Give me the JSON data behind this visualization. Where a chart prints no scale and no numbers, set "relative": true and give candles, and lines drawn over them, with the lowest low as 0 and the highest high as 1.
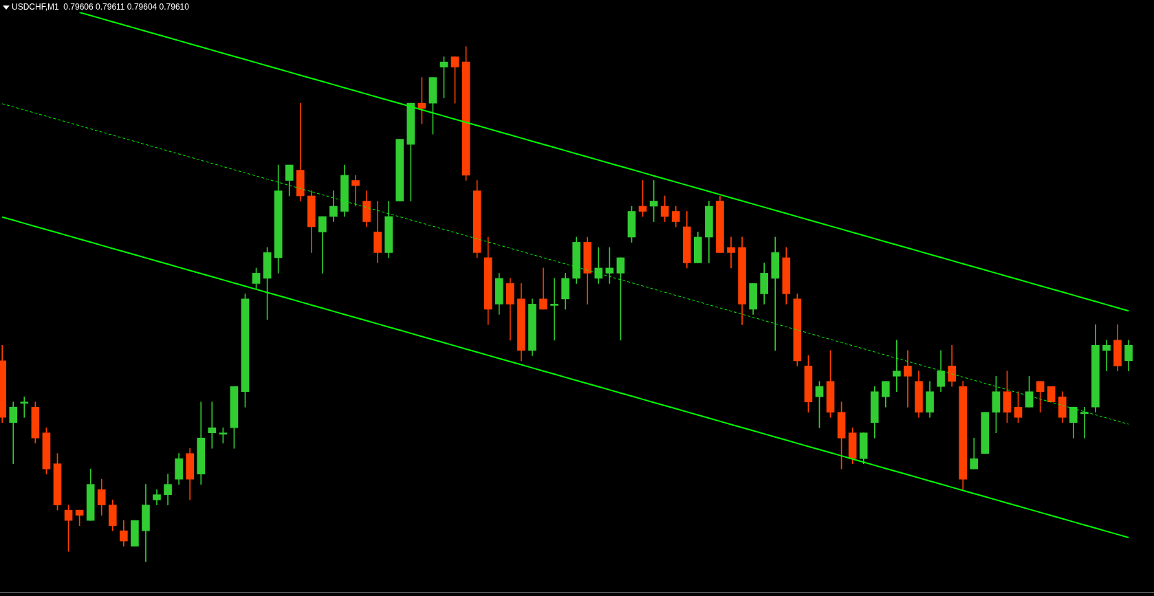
{
  "chart_data": {
    "type": "candlestick",
    "title": "USDCHF,M1  0.79606 0.79611 0.79604 0.79610",
    "relative": true,
    "legend": false,
    "marker": "none",
    "categories": [
      null,
      null,
      null,
      null,
      null,
      null,
      null,
      null,
      null,
      null,
      null,
      null,
      null,
      null,
      null,
      null,
      null,
      null,
      null,
      null,
      null,
      null,
      null,
      null,
      null,
      null,
      null,
      null,
      null,
      null,
      null,
      null,
      null,
      null,
      null,
      null,
      null,
      null,
      null,
      null,
      null,
      null,
      null,
      null,
      null,
      null,
      null,
      null,
      null,
      null,
      null,
      null,
      null,
      null,
      null,
      null,
      null,
      null,
      null,
      null,
      null,
      null,
      null,
      null,
      null,
      null,
      null,
      null,
      null,
      null,
      null,
      null,
      null,
      null,
      null,
      null,
      null,
      null,
      null,
      null,
      null,
      null,
      null,
      null,
      null,
      null,
      null,
      null,
      null,
      null,
      null,
      null,
      null,
      null,
      null,
      null,
      null,
      null,
      null,
      null,
      null,
      null,
      null
    ],
    "ohlc": [
      [
        0.39,
        0.42,
        0.27,
        0.28
      ],
      [
        0.27,
        0.31,
        0.19,
        0.3
      ],
      [
        0.31,
        0.32,
        0.28,
        0.31
      ],
      [
        0.3,
        0.31,
        0.23,
        0.24
      ],
      [
        0.25,
        0.26,
        0.17,
        0.18
      ],
      [
        0.19,
        0.21,
        0.1,
        0.11
      ],
      [
        0.1,
        0.11,
        0.02,
        0.08
      ],
      [
        0.1,
        0.1,
        0.07,
        0.09
      ],
      [
        0.08,
        0.18,
        0.08,
        0.15
      ],
      [
        0.14,
        0.16,
        0.09,
        0.11
      ],
      [
        0.11,
        0.12,
        0.06,
        0.07
      ],
      [
        0.06,
        0.08,
        0.03,
        0.04
      ],
      [
        0.03,
        0.08,
        0.03,
        0.08
      ],
      [
        0.06,
        0.15,
        0,
        0.11
      ],
      [
        0.12,
        0.14,
        0.11,
        0.13
      ],
      [
        0.13,
        0.17,
        0.11,
        0.15
      ],
      [
        0.16,
        0.21,
        0.15,
        0.2
      ],
      [
        0.21,
        0.22,
        0.12,
        0.16
      ],
      [
        0.17,
        0.31,
        0.15,
        0.24
      ],
      [
        0.25,
        0.31,
        0.22,
        0.26
      ],
      [
        0.25,
        0.26,
        0.23,
        0.25
      ],
      [
        0.26,
        0.34,
        0.22,
        0.34
      ],
      [
        0.33,
        0.52,
        0.3,
        0.51
      ],
      [
        0.54,
        0.57,
        0.53,
        0.56
      ],
      [
        0.55,
        0.61,
        0.47,
        0.6
      ],
      [
        0.59,
        0.77,
        0.56,
        0.72
      ],
      [
        0.74,
        0.77,
        0.71,
        0.77
      ],
      [
        0.76,
        0.89,
        0.7,
        0.71
      ],
      [
        0.71,
        0.72,
        0.6,
        0.65
      ],
      [
        0.64,
        0.67,
        0.56,
        0.67
      ],
      [
        0.67,
        0.72,
        0.66,
        0.69
      ],
      [
        0.68,
        0.77,
        0.67,
        0.75
      ],
      [
        0.74,
        0.75,
        0.69,
        0.73
      ],
      [
        0.7,
        0.72,
        0.65,
        0.66
      ],
      [
        0.64,
        0.7,
        0.58,
        0.6
      ],
      [
        0.6,
        0.7,
        0.59,
        0.67
      ],
      [
        0.7,
        0.82,
        0.7,
        0.82
      ],
      [
        0.81,
        0.89,
        0.7,
        0.89
      ],
      [
        0.89,
        0.94,
        0.85,
        0.88
      ],
      [
        0.89,
        0.94,
        0.83,
        0.94
      ],
      [
        0.96,
        0.98,
        0.9,
        0.97
      ],
      [
        0.98,
        0.98,
        0.89,
        0.96
      ],
      [
        0.97,
        1,
        0.74,
        0.75
      ],
      [
        0.72,
        0.74,
        0.59,
        0.6
      ],
      [
        0.59,
        0.63,
        0.46,
        0.49
      ],
      [
        0.5,
        0.56,
        0.48,
        0.55
      ],
      [
        0.54,
        0.55,
        0.43,
        0.5
      ],
      [
        0.51,
        0.54,
        0.39,
        0.41
      ],
      [
        0.41,
        0.51,
        0.4,
        0.5
      ],
      [
        0.51,
        0.57,
        0.49,
        0.49
      ],
      [
        0.5,
        0.55,
        0.43,
        0.5
      ],
      [
        0.51,
        0.56,
        0.49,
        0.55
      ],
      [
        0.55,
        0.63,
        0.54,
        0.62
      ],
      [
        0.62,
        0.63,
        0.5,
        0.56
      ],
      [
        0.55,
        0.61,
        0.54,
        0.57
      ],
      [
        0.56,
        0.61,
        0.54,
        0.57
      ],
      [
        0.56,
        0.59,
        0.43,
        0.59
      ],
      [
        0.63,
        0.69,
        0.62,
        0.68
      ],
      [
        0.69,
        0.74,
        0.67,
        0.68
      ],
      [
        0.69,
        0.74,
        0.66,
        0.7
      ],
      [
        0.69,
        0.71,
        0.66,
        0.67
      ],
      [
        0.68,
        0.69,
        0.65,
        0.66
      ],
      [
        0.65,
        0.68,
        0.57,
        0.58
      ],
      [
        0.58,
        0.64,
        0.58,
        0.63
      ],
      [
        0.63,
        0.7,
        0.58,
        0.69
      ],
      [
        0.7,
        0.71,
        0.6,
        0.6
      ],
      [
        0.61,
        0.63,
        0.57,
        0.6
      ],
      [
        0.61,
        0.63,
        0.46,
        0.5
      ],
      [
        0.49,
        0.54,
        0.48,
        0.54
      ],
      [
        0.52,
        0.58,
        0.5,
        0.56
      ],
      [
        0.55,
        0.63,
        0.41,
        0.6
      ],
      [
        0.59,
        0.61,
        0.5,
        0.52
      ],
      [
        0.51,
        0.52,
        0.38,
        0.39
      ],
      [
        0.38,
        0.4,
        0.29,
        0.31
      ],
      [
        0.32,
        0.35,
        0.26,
        0.34
      ],
      [
        0.35,
        0.41,
        0.28,
        0.29
      ],
      [
        0.29,
        0.31,
        0.18,
        0.24
      ],
      [
        0.25,
        0.26,
        0.19,
        0.2
      ],
      [
        0.2,
        0.25,
        0.19,
        0.25
      ],
      [
        0.27,
        0.34,
        0.24,
        0.33
      ],
      [
        0.32,
        0.35,
        0.3,
        0.35
      ],
      [
        0.36,
        0.43,
        0.33,
        0.37
      ],
      [
        0.38,
        0.41,
        0.3,
        0.36
      ],
      [
        0.35,
        0.37,
        0.28,
        0.29
      ],
      [
        0.29,
        0.35,
        0.28,
        0.33
      ],
      [
        0.34,
        0.41,
        0.33,
        0.37
      ],
      [
        0.38,
        0.42,
        0.34,
        0.35
      ],
      [
        0.34,
        0.35,
        0.14,
        0.16
      ],
      [
        0.18,
        0.24,
        0.18,
        0.2
      ],
      [
        0.21,
        0.29,
        0.21,
        0.29
      ],
      [
        0.29,
        0.36,
        0.25,
        0.33
      ],
      [
        0.33,
        0.37,
        0.27,
        0.29
      ],
      [
        0.3,
        0.33,
        0.27,
        0.28
      ],
      [
        0.3,
        0.36,
        0.3,
        0.33
      ],
      [
        0.35,
        0.35,
        0.29,
        0.33
      ],
      [
        0.34,
        0.34,
        0.31,
        0.31
      ],
      [
        0.32,
        0.33,
        0.27,
        0.28
      ],
      [
        0.27,
        0.3,
        0.24,
        0.3
      ],
      [
        0.29,
        0.3,
        0.24,
        0.29
      ],
      [
        0.3,
        0.46,
        0.29,
        0.42
      ],
      [
        0.41,
        0.43,
        0.37,
        0.42
      ],
      [
        0.43,
        0.46,
        0.37,
        0.38
      ],
      [
        0.39,
        0.43,
        0.37,
        0.42
      ]
    ],
    "colors": [
      "#ff4000",
      "#32cd32",
      "#32cd32",
      "#ff4000",
      "#ff4000",
      "#ff4000",
      "#ff4000",
      "#ff4000",
      "#32cd32",
      "#ff4000",
      "#ff4000",
      "#ff4000",
      "#32cd32",
      "#32cd32",
      "#32cd32",
      "#32cd32",
      "#32cd32",
      "#ff4000",
      "#32cd32",
      "#32cd32",
      "#32cd32",
      "#32cd32",
      "#32cd32",
      "#32cd32",
      "#32cd32",
      "#32cd32",
      "#32cd32",
      "#ff4000",
      "#ff4000",
      "#32cd32",
      "#32cd32",
      "#32cd32",
      "#ff4000",
      "#ff4000",
      "#ff4000",
      "#32cd32",
      "#32cd32",
      "#32cd32",
      "#ff4000",
      "#32cd32",
      "#32cd32",
      "#ff4000",
      "#ff4000",
      "#ff4000",
      "#ff4000",
      "#32cd32",
      "#ff4000",
      "#ff4000",
      "#32cd32",
      "#ff4000",
      "#32cd32",
      "#32cd32",
      "#32cd32",
      "#ff4000",
      "#32cd32",
      "#32cd32",
      "#32cd32",
      "#32cd32",
      "#ff4000",
      "#32cd32",
      "#ff4000",
      "#ff4000",
      "#ff4000",
      "#32cd32",
      "#32cd32",
      "#ff4000",
      "#ff4000",
      "#ff4000",
      "#32cd32",
      "#32cd32",
      "#32cd32",
      "#ff4000",
      "#ff4000",
      "#ff4000",
      "#32cd32",
      "#ff4000",
      "#ff4000",
      "#ff4000",
      "#32cd32",
      "#32cd32",
      "#32cd32",
      "#32cd32",
      "#ff4000",
      "#ff4000",
      "#32cd32",
      "#32cd32",
      "#ff4000",
      "#ff4000",
      "#32cd32",
      "#32cd32",
      "#32cd32",
      "#ff4000",
      "#ff4000",
      "#32cd32",
      "#ff4000",
      "#ff4000",
      "#ff4000",
      "#32cd32",
      "#32cd32",
      "#32cd32",
      "#32cd32",
      "#ff4000",
      "#32cd32"
    ],
    "series": [
      {
        "type": "line",
        "color": "#00ff00",
        "line_style": "solid",
        "values": [
          null,
          null,
          null,
          null,
          null,
          null,
          null,
          1.0663,
          1.0602,
          1.0541,
          1.048,
          1.0419,
          1.0358,
          1.0297,
          1.0236,
          1.0175,
          1.0114,
          1.0053,
          0.9992,
          0.9931,
          0.987,
          0.9809,
          0.9748,
          0.9687,
          0.9626,
          0.9565,
          0.9504,
          0.9443,
          0.9382,
          0.9321,
          0.926,
          0.9199,
          0.9138,
          0.9077,
          0.9016,
          0.8955,
          0.8894,
          0.8833,
          0.8772,
          0.8711,
          0.865,
          0.8589,
          0.8528,
          0.8467,
          0.8406,
          0.8345,
          0.8284,
          0.8223,
          0.8162,
          0.8101,
          0.804,
          0.7979,
          0.7918,
          0.7857,
          0.7796,
          0.7735,
          0.7674,
          0.7613,
          0.7552,
          0.7491,
          0.743,
          0.7369,
          0.7308,
          0.7247,
          0.7186,
          0.7125,
          0.7064,
          0.7003,
          0.6942,
          0.6881,
          0.682,
          0.6759,
          0.6698,
          0.6637,
          0.6576,
          0.6515,
          0.6454,
          0.6393,
          0.6332,
          0.6271,
          0.621,
          0.6149,
          0.6088,
          0.6027,
          0.5966,
          0.5905,
          0.5844,
          0.5783,
          0.5722,
          0.5661,
          0.56,
          0.5539,
          0.5478,
          0.5417,
          0.5356,
          0.5295,
          0.5234,
          0.5173,
          0.5112,
          0.5051,
          0.499,
          0.4929,
          0.4868
        ]
      },
      {
        "type": "line",
        "color": "#00ff00",
        "line_style": "dashed",
        "values": [
          0.889,
          0.8829,
          0.8768,
          0.8707,
          0.8646,
          0.8585,
          0.8524,
          0.8463,
          0.8402,
          0.8341,
          0.828,
          0.8219,
          0.8158,
          0.8097,
          0.8036,
          0.7975,
          0.7914,
          0.7853,
          0.7792,
          0.7731,
          0.767,
          0.7609,
          0.7548,
          0.7487,
          0.7426,
          0.7365,
          0.7304,
          0.7243,
          0.7182,
          0.7121,
          0.706,
          0.6999,
          0.6938,
          0.6877,
          0.6816,
          0.6755,
          0.6694,
          0.6633,
          0.6572,
          0.6511,
          0.645,
          0.6389,
          0.6328,
          0.6267,
          0.6206,
          0.6145,
          0.6084,
          0.6023,
          0.5962,
          0.5901,
          0.584,
          0.5779,
          0.5718,
          0.5657,
          0.5596,
          0.5535,
          0.5474,
          0.5413,
          0.5352,
          0.5291,
          0.523,
          0.5169,
          0.5108,
          0.5047,
          0.4986,
          0.4925,
          0.4864,
          0.4803,
          0.4742,
          0.4681,
          0.462,
          0.4559,
          0.4498,
          0.4437,
          0.4376,
          0.4315,
          0.4254,
          0.4193,
          0.4132,
          0.4071,
          0.401,
          0.3949,
          0.3888,
          0.3827,
          0.3766,
          0.3705,
          0.3644,
          0.3583,
          0.3522,
          0.3461,
          0.34,
          0.3339,
          0.3278,
          0.3217,
          0.3156,
          0.3095,
          0.3034,
          0.2973,
          0.2912,
          0.2851,
          0.279,
          0.2729,
          0.2668
        ]
      },
      {
        "type": "line",
        "color": "#00ff00",
        "line_style": "solid",
        "values": [
          0.669,
          0.6629,
          0.6568,
          0.6507,
          0.6446,
          0.6385,
          0.6324,
          0.6263,
          0.6202,
          0.6141,
          0.608,
          0.6019,
          0.5958,
          0.5897,
          0.5836,
          0.5775,
          0.5714,
          0.5653,
          0.5592,
          0.5531,
          0.547,
          0.5409,
          0.5348,
          0.5287,
          0.5226,
          0.5165,
          0.5104,
          0.5043,
          0.4982,
          0.4921,
          0.486,
          0.4799,
          0.4738,
          0.4677,
          0.4616,
          0.4555,
          0.4494,
          0.4433,
          0.4372,
          0.4311,
          0.425,
          0.4189,
          0.4128,
          0.4067,
          0.4006,
          0.3945,
          0.3884,
          0.3823,
          0.3762,
          0.3701,
          0.364,
          0.3579,
          0.3518,
          0.3457,
          0.3396,
          0.3335,
          0.3274,
          0.3213,
          0.3152,
          0.3091,
          0.303,
          0.2969,
          0.2908,
          0.2847,
          0.2786,
          0.2725,
          0.2664,
          0.2603,
          0.2542,
          0.2481,
          0.242,
          0.2359,
          0.2298,
          0.2237,
          0.2176,
          0.2115,
          0.2054,
          0.1993,
          0.1932,
          0.1871,
          0.181,
          0.1749,
          0.1688,
          0.1627,
          0.1566,
          0.1505,
          0.1444,
          0.1383,
          0.1322,
          0.1261,
          0.12,
          0.1139,
          0.1078,
          0.1017,
          0.0956,
          0.0895,
          0.0834,
          0.0773,
          0.0712,
          0.0651,
          0.059,
          0.0529,
          0.0468
        ]
      }
    ]
  }
}
